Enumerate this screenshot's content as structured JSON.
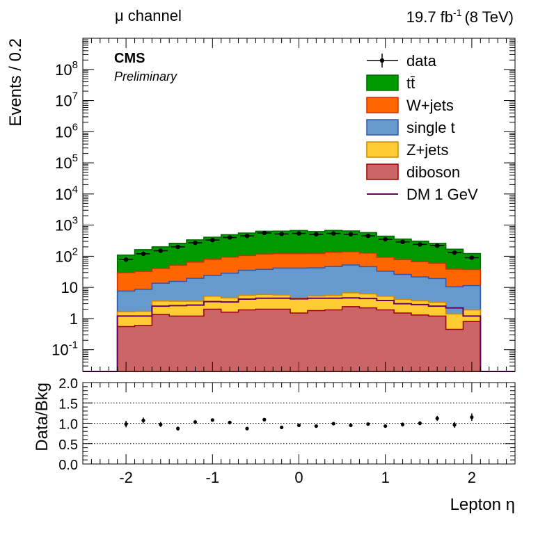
{
  "header": {
    "channel": "μ channel",
    "lumi_base": "19.7 fb",
    "lumi_exp": "-1",
    "lumi_energy": "(8 TeV)"
  },
  "labels": {
    "cms": "CMS",
    "preliminary": "Preliminary"
  },
  "chart_data": [
    {
      "type": "stacked-histogram",
      "xlabel": "Lepton η",
      "ylabel": "Events / 0.2",
      "xlim": [
        -2.5,
        2.5
      ],
      "ylim": [
        0.02,
        1000000000.0
      ],
      "yscale": "log",
      "ytick_labels": [
        {
          "base": "10",
          "exp": "-1",
          "v": 0.1
        },
        {
          "base": "1",
          "exp": "",
          "v": 1
        },
        {
          "base": "10",
          "exp": "",
          "v": 10
        },
        {
          "base": "10",
          "exp": "2",
          "v": 100
        },
        {
          "base": "10",
          "exp": "3",
          "v": 1000
        },
        {
          "base": "10",
          "exp": "4",
          "v": 10000
        },
        {
          "base": "10",
          "exp": "5",
          "v": 100000
        },
        {
          "base": "10",
          "exp": "6",
          "v": 1000000
        },
        {
          "base": "10",
          "exp": "7",
          "v": 10000000
        },
        {
          "base": "10",
          "exp": "8",
          "v": 100000000
        }
      ],
      "bin_edges": [
        -2.1,
        -1.9,
        -1.7,
        -1.5,
        -1.3,
        -1.1,
        -0.9,
        -0.7,
        -0.5,
        -0.3,
        -0.1,
        0.1,
        0.3,
        0.5,
        0.7,
        0.9,
        1.1,
        1.3,
        1.5,
        1.7,
        1.9,
        2.1
      ],
      "stack": [
        {
          "name": "diboson",
          "color": "#cc6666",
          "edge": "#990000",
          "values": [
            0.55,
            0.6,
            1.35,
            1.2,
            1.2,
            2.0,
            1.6,
            1.9,
            2.0,
            2.0,
            1.5,
            1.8,
            1.9,
            2.4,
            2.2,
            1.9,
            1.5,
            1.3,
            1.2,
            0.45,
            0.8
          ]
        },
        {
          "name": "Z+jets",
          "color": "#ffcc33",
          "edge": "#cc8800",
          "values": [
            1.1,
            1.1,
            2.3,
            2.4,
            2.4,
            3.2,
            3.0,
            3.7,
            3.9,
            3.7,
            3.2,
            3.5,
            3.6,
            4.3,
            4.0,
            3.3,
            2.6,
            2.4,
            2.1,
            0.95,
            1.1
          ]
        },
        {
          "name": "single t",
          "color": "#6699cc",
          "edge": "#3355aa",
          "values": [
            6,
            7,
            10,
            12,
            16,
            19,
            24,
            30,
            32,
            36,
            37,
            37,
            41,
            46,
            40,
            28,
            22,
            18,
            16,
            9,
            9.5
          ]
        },
        {
          "name": "W+jets",
          "color": "#ff6600",
          "edge": "#cc3300",
          "values": [
            22,
            24,
            27,
            36,
            45,
            55,
            65,
            70,
            80,
            80,
            80,
            80,
            88,
            88,
            80,
            60,
            52,
            45,
            40,
            28,
            26
          ]
        },
        {
          "name": "tt̄",
          "color": "#009900",
          "edge": "#006600",
          "values": [
            80,
            130,
            160,
            210,
            270,
            330,
            400,
            450,
            520,
            520,
            550,
            500,
            540,
            510,
            450,
            350,
            280,
            240,
            200,
            130,
            85
          ]
        }
      ],
      "signal": {
        "name": "DM 1 GeV",
        "color": "#660066",
        "values": [
          1.2,
          1.2,
          2.5,
          2.6,
          2.7,
          3.5,
          3.4,
          4.2,
          4.5,
          4.5,
          4.3,
          4.5,
          4.5,
          4.6,
          4.4,
          3.8,
          3.0,
          2.8,
          2.5,
          2.2,
          1.2
        ]
      },
      "data_points": {
        "name": "data",
        "x": [
          -2.0,
          -1.8,
          -1.6,
          -1.4,
          -1.2,
          -1.0,
          -0.8,
          -0.6,
          -0.4,
          -0.2,
          0.0,
          0.2,
          0.4,
          0.6,
          0.8,
          1.0,
          1.2,
          1.4,
          1.6,
          1.8,
          2.0
        ],
        "y": [
          78,
          120,
          150,
          200,
          270,
          330,
          400,
          450,
          560,
          520,
          540,
          510,
          540,
          510,
          450,
          350,
          290,
          240,
          220,
          130,
          90
        ]
      },
      "legend": [
        "data",
        "tt̄",
        "W+jets",
        "single t",
        "Z+jets",
        "diboson",
        "DM 1 GeV"
      ],
      "legend_position": "top-right"
    },
    {
      "type": "scatter",
      "xlabel": "Lepton η",
      "ylabel": "Data/Bkg",
      "xlim": [
        -2.5,
        2.5
      ],
      "ylim": [
        0.0,
        2.0
      ],
      "ytick_labels": [
        "0.0",
        "0.5",
        "1.0",
        "1.5",
        "2.0"
      ],
      "xtick_labels": [
        "-2",
        "-1",
        "0",
        "1",
        "2"
      ],
      "reference_lines": [
        0.5,
        1.0,
        1.5
      ],
      "x": [
        -2.0,
        -1.8,
        -1.6,
        -1.4,
        -1.2,
        -1.0,
        -0.8,
        -0.6,
        -0.4,
        -0.2,
        0.0,
        0.2,
        0.4,
        0.6,
        0.8,
        1.0,
        1.2,
        1.4,
        1.6,
        1.8,
        2.0
      ],
      "y": [
        0.98,
        1.07,
        0.97,
        0.87,
        1.03,
        1.08,
        1.02,
        0.87,
        1.09,
        0.9,
        0.95,
        0.93,
        0.99,
        0.95,
        0.98,
        0.93,
        0.97,
        1.0,
        1.12,
        0.96,
        1.15
      ],
      "err": [
        0.08,
        0.07,
        0.06,
        0.05,
        0.05,
        0.04,
        0.04,
        0.04,
        0.03,
        0.03,
        0.03,
        0.03,
        0.03,
        0.03,
        0.04,
        0.04,
        0.05,
        0.05,
        0.06,
        0.07,
        0.09
      ]
    }
  ]
}
